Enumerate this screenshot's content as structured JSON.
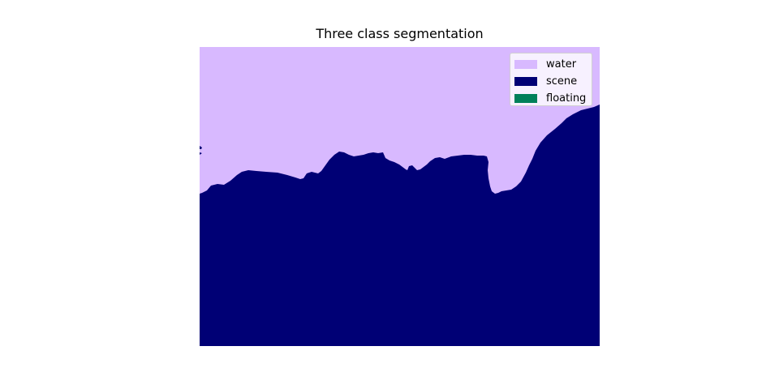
{
  "chart_data": {
    "type": "heatmap",
    "title": "Three class segmentation",
    "xlabel": "",
    "ylabel": "",
    "axes_visible": false,
    "grid": false,
    "legend_placement": "upper-right",
    "classes": [
      {
        "name": "water",
        "color": "#d8b9ff"
      },
      {
        "name": "scene",
        "color": "#000075"
      },
      {
        "name": "floating",
        "color": "#00805a"
      }
    ],
    "description_of_regions": "water fills the top of the image; scene fills the bottom with an irregular shoreline boundary; no floating pixels visible"
  }
}
